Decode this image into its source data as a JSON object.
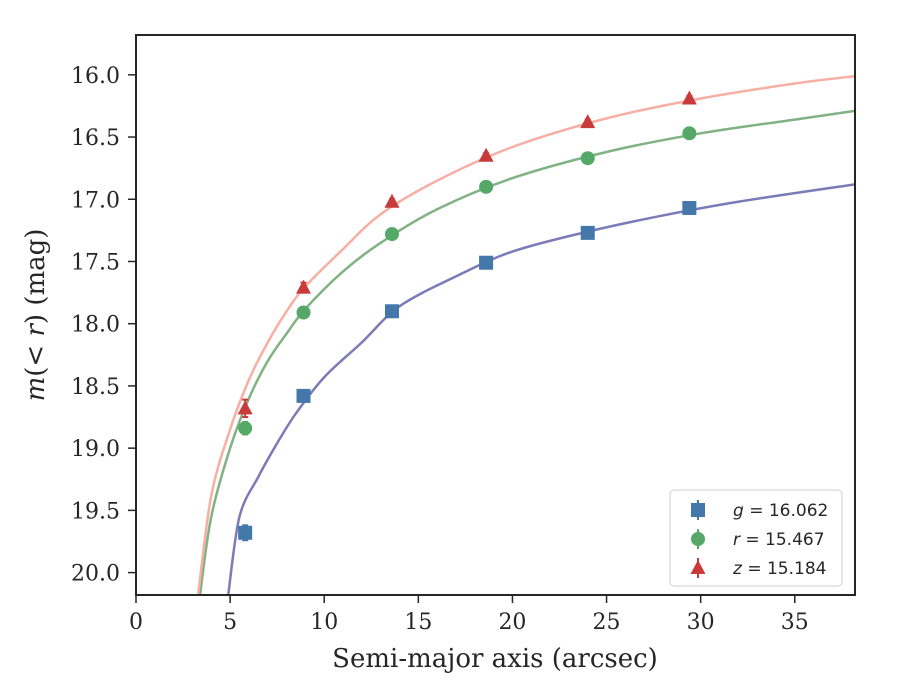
{
  "chart_data": {
    "type": "scatter",
    "xlabel": "Semi-major axis (arcsec)",
    "ylabel": "m(< r) (mag)",
    "xlim": [
      0,
      38.2
    ],
    "ylim": [
      20.18,
      15.68
    ],
    "y_inverted": true,
    "xticks": [
      0,
      5,
      10,
      15,
      20,
      25,
      30,
      35
    ],
    "xtick_labels": [
      "0",
      "5",
      "10",
      "15",
      "20",
      "25",
      "30",
      "35"
    ],
    "yticks": [
      16.0,
      16.5,
      17.0,
      17.5,
      18.0,
      18.5,
      19.0,
      19.5,
      20.0
    ],
    "ytick_labels": [
      "16.0",
      "16.5",
      "17.0",
      "17.5",
      "18.0",
      "18.5",
      "19.0",
      "19.5",
      "20.0"
    ],
    "grid": false,
    "legend_position": "bottom-right",
    "series": [
      {
        "name": "g = 16.062",
        "legend_symbol": "g",
        "legend_value": "16.062",
        "marker": "square",
        "color": "#4477aa",
        "x": [
          5.8,
          8.9,
          13.6,
          18.6,
          24.0,
          29.4
        ],
        "y": [
          19.68,
          18.58,
          17.9,
          17.51,
          17.27,
          17.07
        ],
        "yerr": [
          0.06,
          0.03,
          0.02,
          0.02,
          0.02,
          0.02
        ],
        "fit": {
          "color": "#7b7bb8",
          "x": [
            4.9,
            5.5,
            6.5,
            7.5,
            8.5,
            10,
            12,
            14,
            17,
            20,
            24,
            28,
            32,
            38.2
          ],
          "y": [
            20.18,
            19.55,
            19.23,
            18.96,
            18.72,
            18.43,
            18.15,
            17.86,
            17.62,
            17.42,
            17.26,
            17.13,
            17.02,
            16.88
          ]
        }
      },
      {
        "name": "r = 15.467",
        "legend_symbol": "r",
        "legend_value": "15.467",
        "marker": "circle",
        "color": "#55a868",
        "x": [
          5.8,
          8.9,
          13.6,
          18.6,
          24.0,
          29.4
        ],
        "y": [
          18.84,
          17.91,
          17.28,
          16.9,
          16.67,
          16.47
        ],
        "yerr": [
          0.05,
          0.03,
          0.02,
          0.02,
          0.02,
          0.02
        ],
        "fit": {
          "color": "#80b283",
          "x": [
            3.4,
            4.0,
            5.0,
            6.0,
            7.0,
            8.0,
            9.0,
            11,
            13,
            16,
            20,
            25,
            30,
            35,
            38.2
          ],
          "y": [
            20.18,
            19.55,
            19.0,
            18.6,
            18.3,
            18.08,
            17.88,
            17.58,
            17.35,
            17.08,
            16.83,
            16.62,
            16.47,
            16.36,
            16.29
          ]
        }
      },
      {
        "name": "z = 15.184",
        "legend_symbol": "z",
        "legend_value": "15.184",
        "marker": "triangle",
        "color": "#c93a3a",
        "x": [
          5.8,
          8.9,
          13.6,
          18.6,
          24.0,
          29.4
        ],
        "y": [
          18.68,
          17.71,
          17.02,
          16.65,
          16.38,
          16.19
        ],
        "yerr": [
          0.07,
          0.04,
          0.02,
          0.02,
          0.02,
          0.02
        ],
        "fit": {
          "color": "#f7aea3",
          "x": [
            3.3,
            4.0,
            5.0,
            6.0,
            7.0,
            8.0,
            9.0,
            11,
            13,
            16,
            20,
            25,
            30,
            35,
            38.2
          ],
          "y": [
            20.18,
            19.38,
            18.85,
            18.45,
            18.15,
            17.9,
            17.7,
            17.4,
            17.12,
            16.85,
            16.58,
            16.35,
            16.19,
            16.07,
            16.01
          ]
        }
      }
    ]
  }
}
